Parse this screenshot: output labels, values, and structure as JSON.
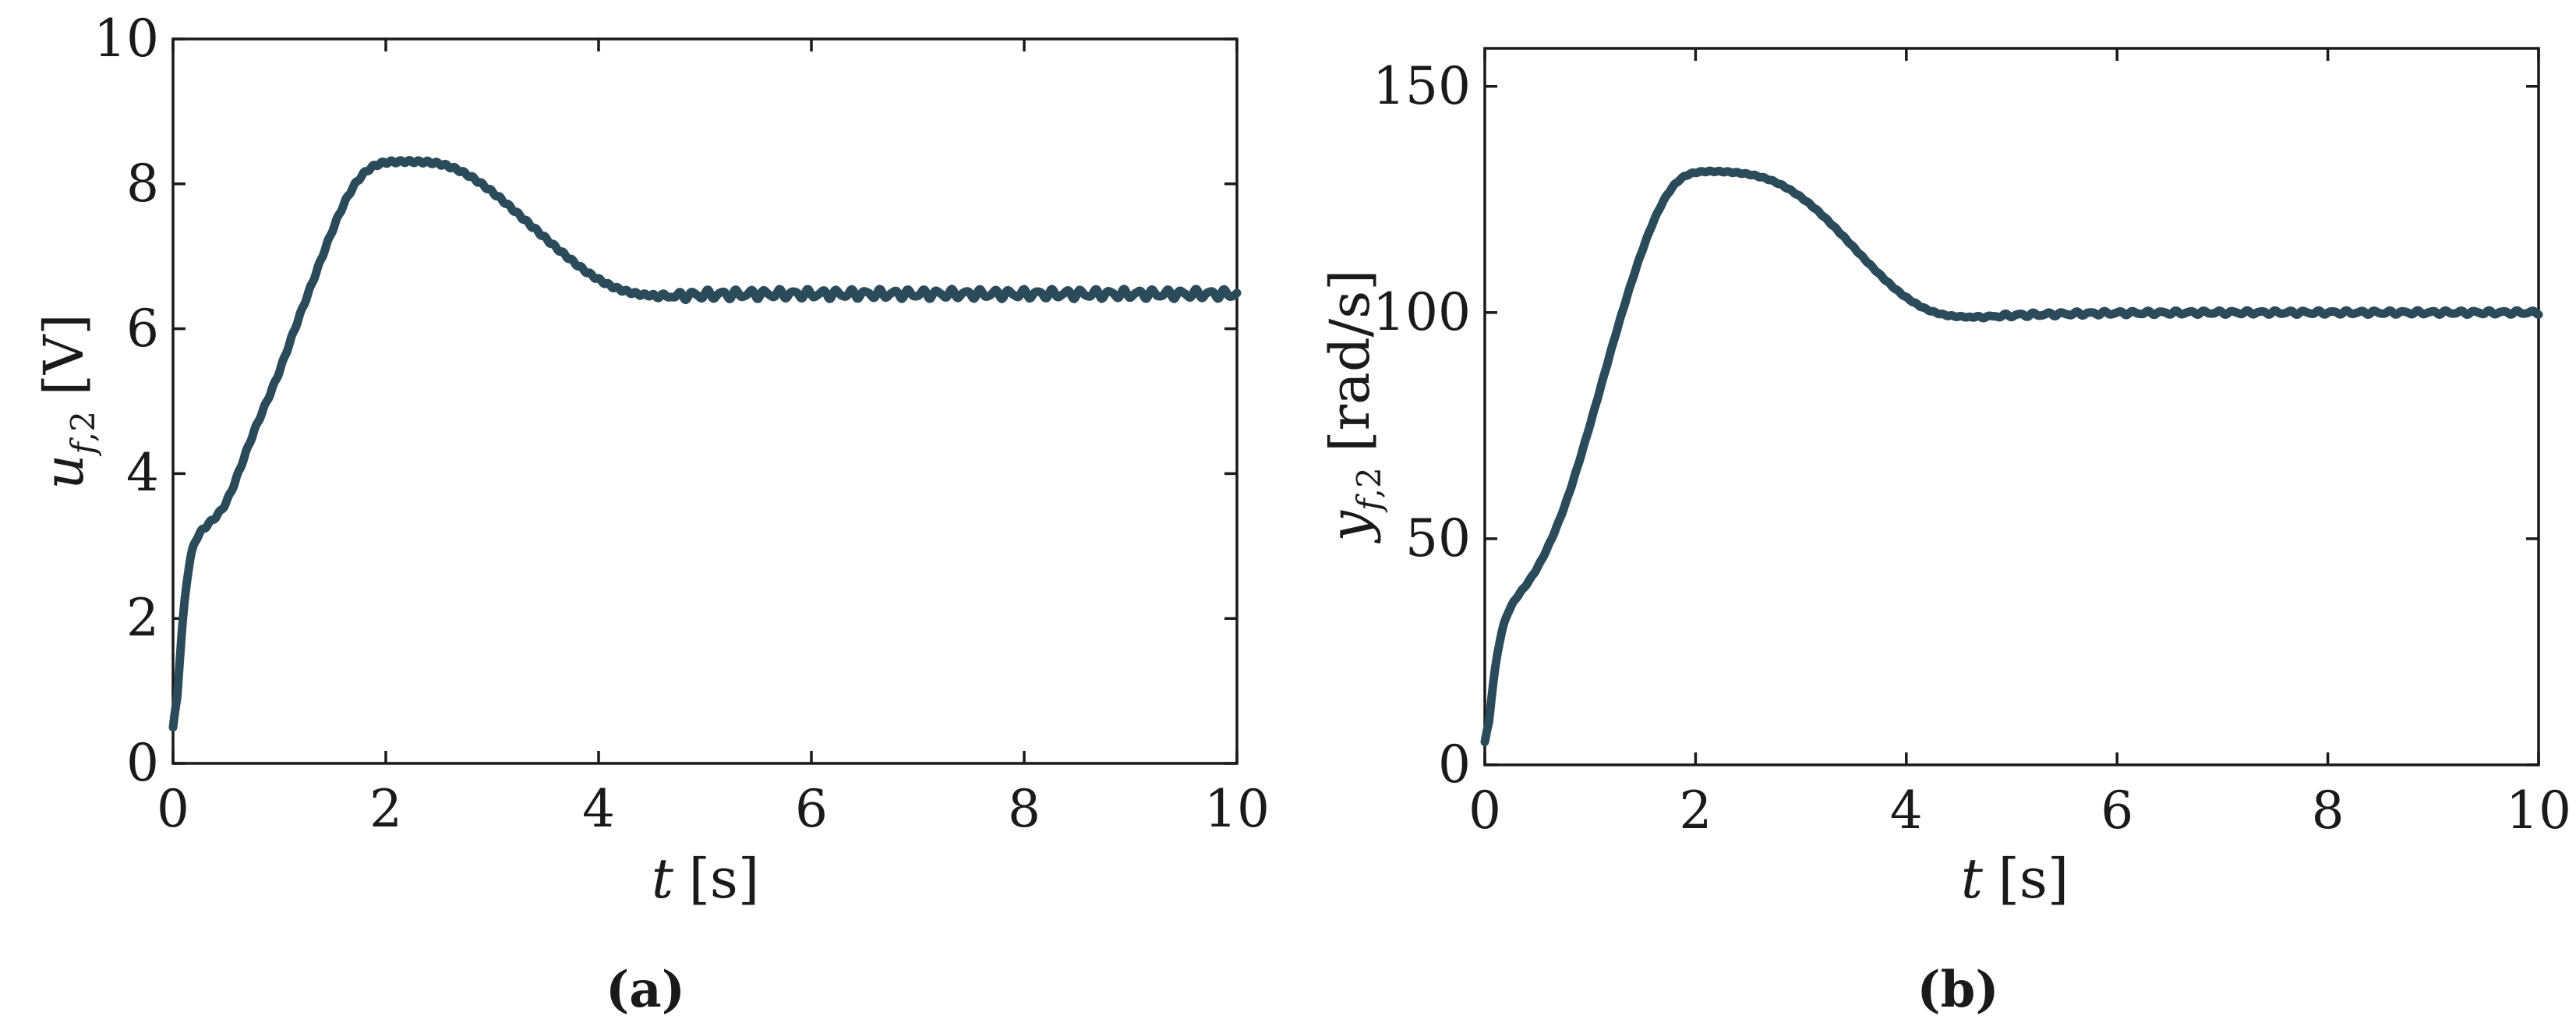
{
  "figure": {
    "background": "#ffffff",
    "panels": [
      {
        "caption": "(a)",
        "xlabel": {
          "variable": "t",
          "unit": "[s]"
        },
        "ylabel": {
          "variable": "u",
          "subscript_italic": "f",
          "subscript_rest": ",2",
          "unit": "[V]"
        }
      },
      {
        "caption": "(b)",
        "xlabel": {
          "variable": "t",
          "unit": "[s]"
        },
        "ylabel": {
          "variable": "y",
          "subscript_italic": "f",
          "subscript_rest": ",2",
          "unit": "[rad/s]"
        }
      }
    ]
  },
  "colors": {
    "line": "#2b4a5a",
    "axis": "#1a1a1a",
    "text": "#1a1a1a"
  },
  "chart_data": [
    {
      "type": "line",
      "panel": "a",
      "title": "",
      "xlabel": "t [s]",
      "ylabel": "u_{f,2} [V]",
      "xlim": [
        0,
        10
      ],
      "ylim": [
        0,
        10
      ],
      "xticks": [
        0,
        2,
        4,
        6,
        8,
        10
      ],
      "xtick_labels": [
        "0",
        "2",
        "4",
        "6",
        "8",
        "10"
      ],
      "yticks": [
        0,
        2,
        4,
        6,
        8,
        10
      ],
      "ytick_labels": [
        "0",
        "2",
        "4",
        "6",
        "8",
        "10"
      ],
      "grid": false,
      "legend": null,
      "line_color": "#2b4a5a",
      "line_width": 11,
      "peak_value": 8.3,
      "settle_value": 6.48,
      "ripple": {
        "start": 4.45,
        "ramp": 0.4,
        "amplitude": 0.05,
        "period": 0.135
      },
      "texture_amplitude": 0.018,
      "texture_period": 0.085,
      "points": [
        [
          0,
          0
        ],
        [
          0.02,
          0.5
        ],
        [
          0.04,
          0.95
        ],
        [
          0.06,
          1.4
        ],
        [
          0.08,
          1.8
        ],
        [
          0.1,
          2.15
        ],
        [
          0.12,
          2.45
        ],
        [
          0.14,
          2.67
        ],
        [
          0.16,
          2.84
        ],
        [
          0.18,
          2.97
        ],
        [
          0.2,
          3.06
        ],
        [
          0.25,
          3.18
        ],
        [
          0.3,
          3.26
        ],
        [
          0.35,
          3.33
        ],
        [
          0.4,
          3.4
        ],
        [
          0.45,
          3.48
        ],
        [
          0.5,
          3.6
        ],
        [
          0.55,
          3.76
        ],
        [
          0.6,
          3.95
        ],
        [
          0.65,
          4.15
        ],
        [
          0.7,
          4.35
        ],
        [
          0.75,
          4.54
        ],
        [
          0.8,
          4.72
        ],
        [
          0.85,
          4.89
        ],
        [
          0.9,
          5.06
        ],
        [
          0.95,
          5.23
        ],
        [
          1,
          5.41
        ],
        [
          1.1,
          5.82
        ],
        [
          1.2,
          6.22
        ],
        [
          1.3,
          6.6
        ],
        [
          1.4,
          6.99
        ],
        [
          1.5,
          7.37
        ],
        [
          1.6,
          7.71
        ],
        [
          1.7,
          7.98
        ],
        [
          1.8,
          8.16
        ],
        [
          1.9,
          8.26
        ],
        [
          2,
          8.3
        ],
        [
          2.2,
          8.31
        ],
        [
          2.4,
          8.3
        ],
        [
          2.5,
          8.28
        ],
        [
          2.6,
          8.24
        ],
        [
          2.7,
          8.18
        ],
        [
          2.8,
          8.1
        ],
        [
          2.9,
          8
        ],
        [
          3,
          7.89
        ],
        [
          3.1,
          7.77
        ],
        [
          3.2,
          7.64
        ],
        [
          3.3,
          7.51
        ],
        [
          3.4,
          7.38
        ],
        [
          3.5,
          7.25
        ],
        [
          3.6,
          7.12
        ],
        [
          3.7,
          7
        ],
        [
          3.8,
          6.88
        ],
        [
          3.9,
          6.77
        ],
        [
          4,
          6.68
        ],
        [
          4.1,
          6.6
        ],
        [
          4.2,
          6.54
        ],
        [
          4.3,
          6.5
        ],
        [
          4.4,
          6.47
        ],
        [
          4.5,
          6.46
        ],
        [
          4.6,
          6.45
        ],
        [
          4.7,
          6.45
        ],
        [
          4.8,
          6.46
        ],
        [
          5,
          6.47
        ],
        [
          5.5,
          6.48
        ],
        [
          6,
          6.48
        ],
        [
          7,
          6.48
        ],
        [
          8,
          6.48
        ],
        [
          9,
          6.48
        ],
        [
          10,
          6.48
        ]
      ]
    },
    {
      "type": "line",
      "panel": "b",
      "title": "",
      "xlabel": "t [s]",
      "ylabel": "y_{f,2} [rad/s]",
      "xlim": [
        0,
        10
      ],
      "ylim": [
        0,
        158.4
      ],
      "xticks": [
        0,
        2,
        4,
        6,
        8,
        10
      ],
      "xtick_labels": [
        "0",
        "2",
        "4",
        "6",
        "8",
        "10"
      ],
      "yticks": [
        0,
        50,
        100,
        150
      ],
      "ytick_labels": [
        "0",
        "50",
        "100",
        "150"
      ],
      "grid": false,
      "legend": null,
      "line_color": "#2b4a5a",
      "line_width": 11,
      "peak_value": 131,
      "settle_value": 100,
      "ripple": {
        "start": 4.5,
        "ramp": 0.5,
        "amplitude": 0.35,
        "period": 0.135
      },
      "texture_amplitude": 0.12,
      "texture_period": 0.085,
      "points": [
        [
          0,
          0
        ],
        [
          0.02,
          5
        ],
        [
          0.04,
          10
        ],
        [
          0.06,
          14.5
        ],
        [
          0.08,
          18.5
        ],
        [
          0.1,
          22
        ],
        [
          0.12,
          25
        ],
        [
          0.14,
          27.5
        ],
        [
          0.16,
          29.6
        ],
        [
          0.18,
          31.3
        ],
        [
          0.2,
          32.7
        ],
        [
          0.25,
          35.2
        ],
        [
          0.3,
          37
        ],
        [
          0.35,
          38.5
        ],
        [
          0.4,
          40
        ],
        [
          0.45,
          41.7
        ],
        [
          0.5,
          43.6
        ],
        [
          0.55,
          45.8
        ],
        [
          0.6,
          48.2
        ],
        [
          0.65,
          50.8
        ],
        [
          0.7,
          53.6
        ],
        [
          0.75,
          56.7
        ],
        [
          0.8,
          60
        ],
        [
          0.85,
          63.6
        ],
        [
          0.9,
          67.4
        ],
        [
          0.95,
          71.3
        ],
        [
          1,
          75.3
        ],
        [
          1.1,
          83.5
        ],
        [
          1.2,
          91.8
        ],
        [
          1.3,
          99.8
        ],
        [
          1.4,
          107.3
        ],
        [
          1.5,
          114.2
        ],
        [
          1.6,
          120.2
        ],
        [
          1.7,
          125
        ],
        [
          1.8,
          128.4
        ],
        [
          1.9,
          130.3
        ],
        [
          2,
          131
        ],
        [
          2.1,
          131.2
        ],
        [
          2.2,
          131.2
        ],
        [
          2.3,
          131.1
        ],
        [
          2.4,
          130.9
        ],
        [
          2.5,
          130.6
        ],
        [
          2.6,
          130.1
        ],
        [
          2.7,
          129.4
        ],
        [
          2.8,
          128.4
        ],
        [
          2.9,
          127.1
        ],
        [
          3,
          125.5
        ],
        [
          3.1,
          123.7
        ],
        [
          3.2,
          121.6
        ],
        [
          3.3,
          119.3
        ],
        [
          3.4,
          116.9
        ],
        [
          3.5,
          114.4
        ],
        [
          3.6,
          111.9
        ],
        [
          3.7,
          109.5
        ],
        [
          3.8,
          107.2
        ],
        [
          3.9,
          105.1
        ],
        [
          4,
          103.3
        ],
        [
          4.1,
          101.8
        ],
        [
          4.2,
          100.6
        ],
        [
          4.3,
          99.8
        ],
        [
          4.4,
          99.3
        ],
        [
          4.5,
          99.1
        ],
        [
          4.6,
          99
        ],
        [
          4.7,
          99
        ],
        [
          4.8,
          99.1
        ],
        [
          5,
          99.4
        ],
        [
          5.5,
          99.7
        ],
        [
          6,
          99.9
        ],
        [
          7,
          100
        ],
        [
          8,
          100
        ],
        [
          9,
          100
        ],
        [
          10,
          100
        ]
      ]
    }
  ]
}
